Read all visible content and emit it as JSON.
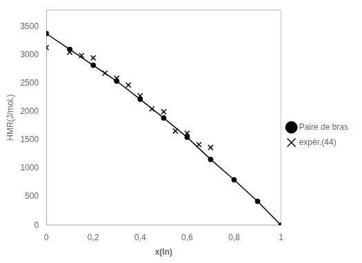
{
  "chart_data": {
    "type": "line",
    "xlabel": "x(In)",
    "ylabel": "HMR(J/mol.)",
    "xlim": [
      0,
      1
    ],
    "ylim": [
      0,
      3800
    ],
    "xticks": [
      0,
      {
        "value": 0.2,
        "label": "0,2"
      },
      {
        "value": 0.4,
        "label": "0,4"
      },
      {
        "value": 0.6,
        "label": "0,6"
      },
      {
        "value": 0.8,
        "label": "0,8"
      },
      1
    ],
    "yticks": [
      0,
      500,
      1000,
      1500,
      2000,
      2500,
      3000,
      3500
    ],
    "grid": false,
    "legend": "right",
    "series": [
      {
        "name": "Paire de bras",
        "type": "line",
        "marker": "circle",
        "color": "black",
        "x": [
          0.0,
          0.1,
          0.2,
          0.3,
          0.4,
          0.5,
          0.6,
          0.7,
          0.8,
          0.9,
          1.0
        ],
        "values": [
          3380,
          3100,
          2820,
          2540,
          2220,
          1890,
          1550,
          1160,
          800,
          420,
          0
        ]
      },
      {
        "name": "expér.(44)",
        "type": "scatter",
        "marker": "x",
        "color": "black",
        "x": [
          0.0,
          0.1,
          0.15,
          0.2,
          0.25,
          0.3,
          0.35,
          0.4,
          0.45,
          0.5,
          0.55,
          0.6,
          0.65,
          0.7
        ],
        "values": [
          3130,
          3050,
          2990,
          2950,
          2680,
          2590,
          2470,
          2280,
          2050,
          2000,
          1660,
          1620,
          1420,
          1370
        ]
      }
    ]
  }
}
